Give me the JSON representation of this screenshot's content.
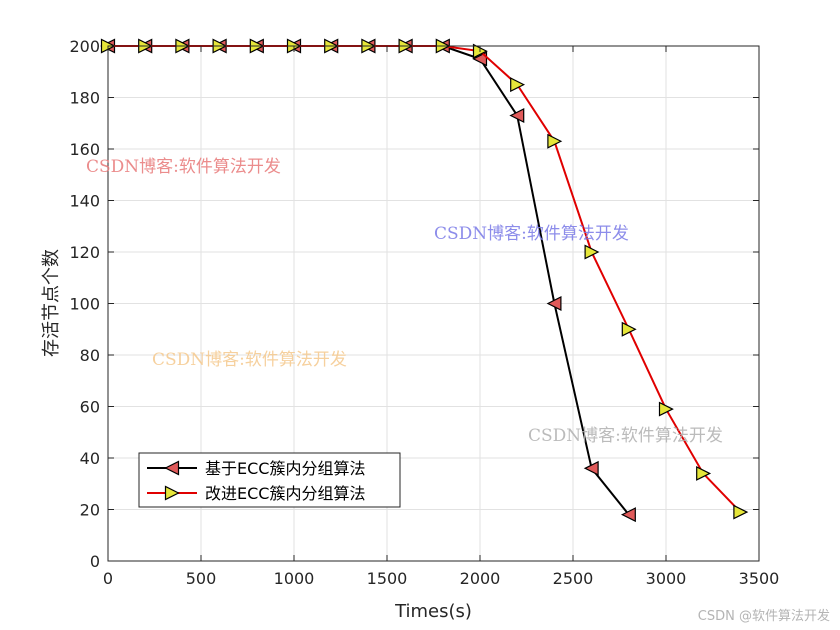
{
  "chart_data": {
    "type": "line",
    "xlabel": "Times(s)",
    "ylabel": "存活节点个数",
    "xlim": [
      0,
      3500
    ],
    "ylim": [
      0,
      200
    ],
    "xticks": [
      0,
      500,
      1000,
      1500,
      2000,
      2500,
      3000,
      3500
    ],
    "yticks": [
      0,
      20,
      40,
      60,
      80,
      100,
      120,
      140,
      160,
      180,
      200
    ],
    "grid": true,
    "legend_position": "bottom-left",
    "series": [
      {
        "name": "基于ECC簇内分组算法",
        "color": "#000000",
        "marker": "triangle-left",
        "marker_fill": "#e05a5a",
        "x": [
          0,
          200,
          400,
          600,
          800,
          1000,
          1200,
          1400,
          1600,
          1800,
          2000,
          2200,
          2400,
          2600,
          2800
        ],
        "y": [
          200,
          200,
          200,
          200,
          200,
          200,
          200,
          200,
          200,
          200,
          195,
          173,
          100,
          36,
          18
        ]
      },
      {
        "name": "改进ECC簇内分组算法",
        "color": "#e00000",
        "marker": "triangle-right",
        "marker_fill": "#e6e63a",
        "x": [
          0,
          200,
          400,
          600,
          800,
          1000,
          1200,
          1400,
          1600,
          1800,
          2000,
          2200,
          2400,
          2600,
          2800,
          3000,
          3200,
          3400
        ],
        "y": [
          200,
          200,
          200,
          200,
          200,
          200,
          200,
          200,
          200,
          200,
          198,
          185,
          163,
          120,
          90,
          59,
          34,
          19
        ]
      }
    ]
  },
  "watermarks": [
    "CSDN博客:软件算法开发",
    "CSDN博客:软件算法开发",
    "CSDN博客:软件算法开发",
    "CSDN博客:软件算法开发"
  ],
  "footer_watermark": "CSDN @软件算法开发"
}
